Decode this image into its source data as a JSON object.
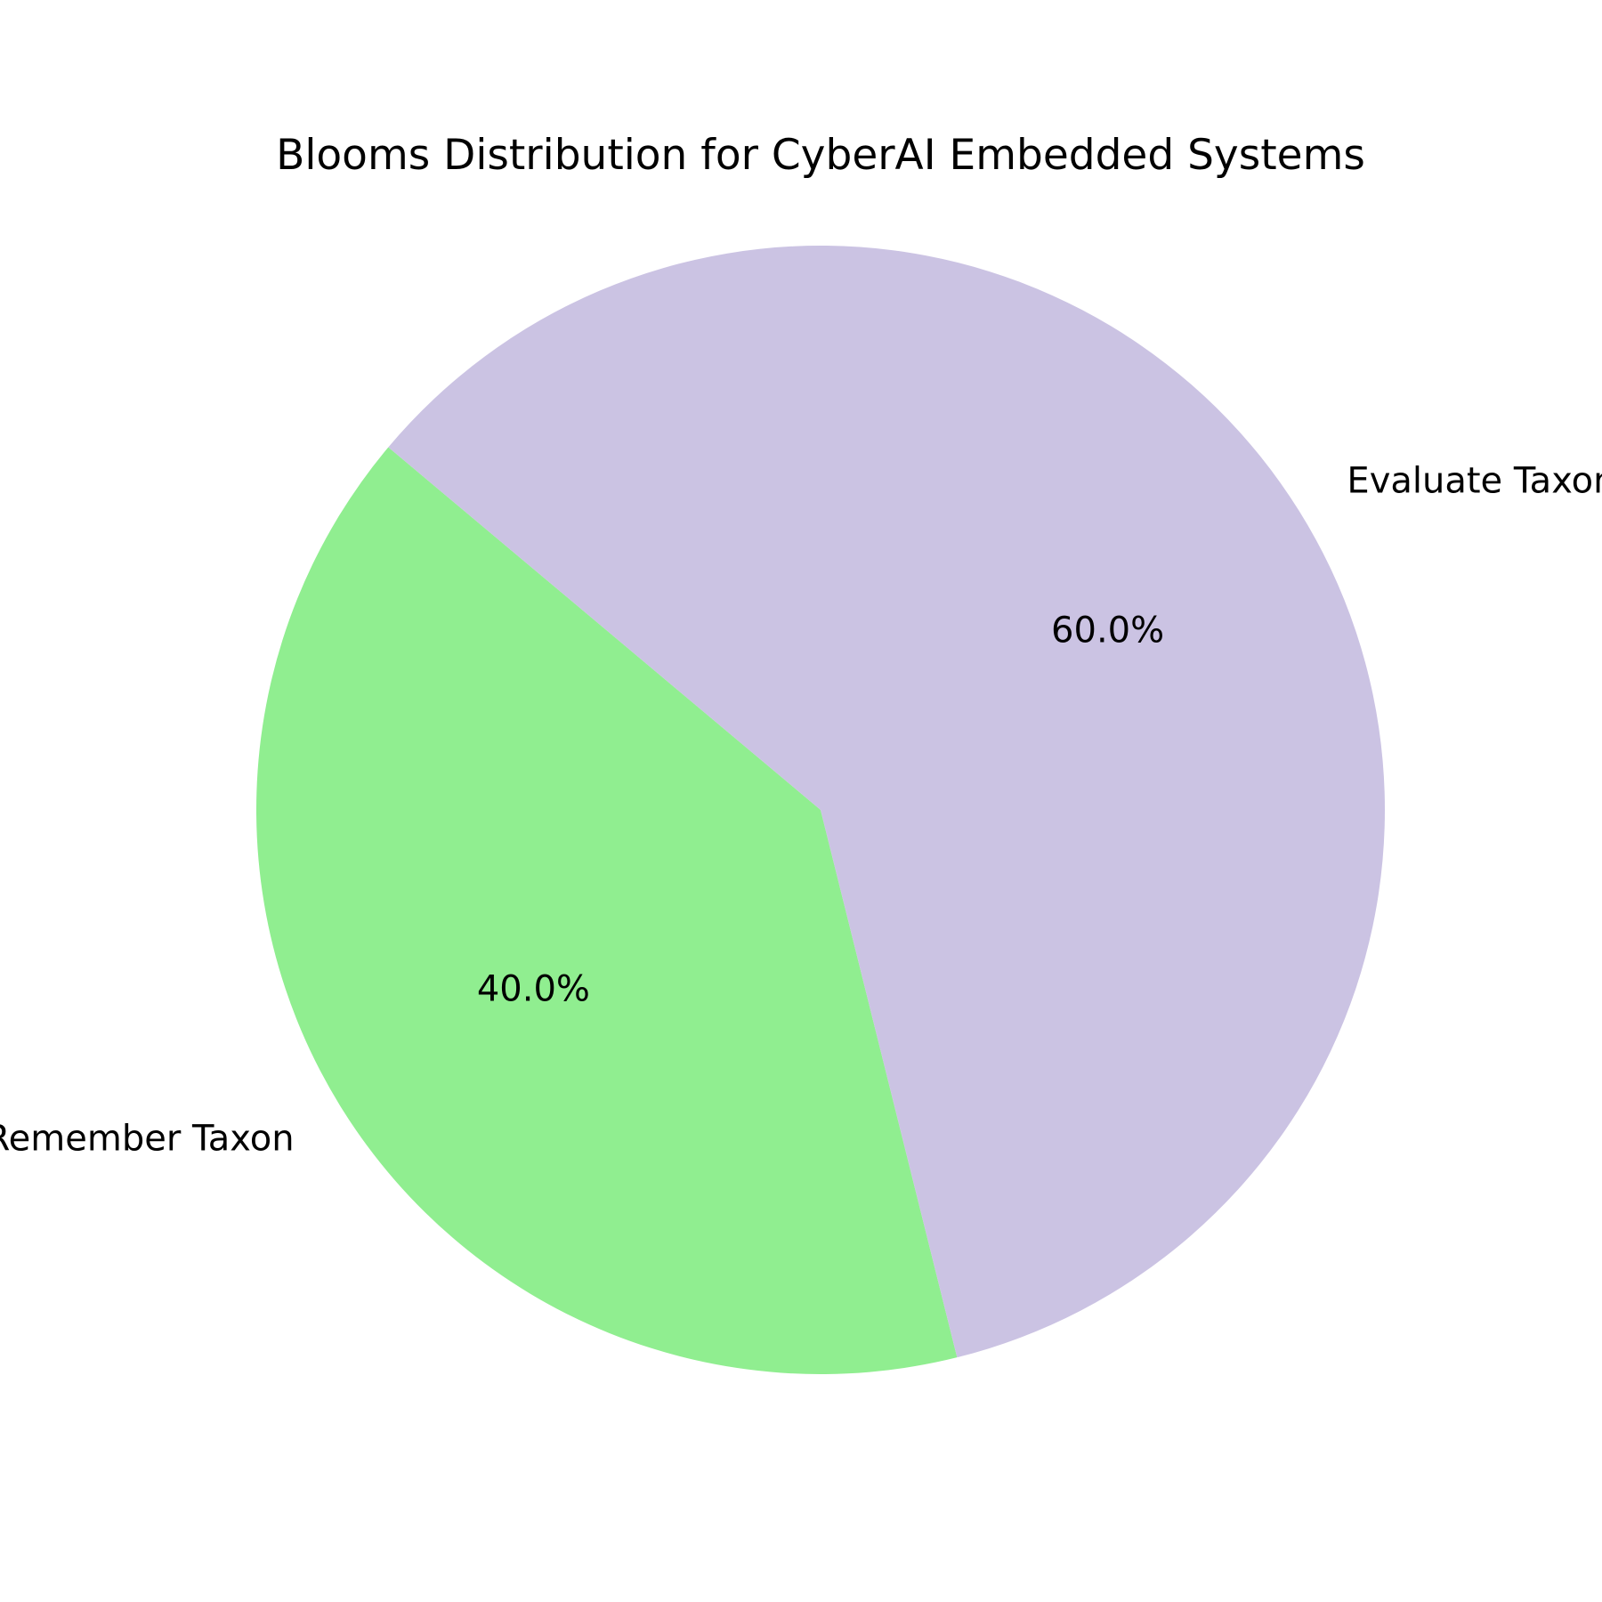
{
  "chart_data": {
    "type": "pie",
    "title": "Blooms Distribution for CyberAI Embedded Systems",
    "slices": [
      {
        "label": "Remember Taxon",
        "value": 40.0,
        "pct_label": "40.0%",
        "color": "#90ee90"
      },
      {
        "label": "Evaluate Taxon",
        "value": 60.0,
        "pct_label": "60.0%",
        "color": "#cbc3e3"
      }
    ],
    "start_angle_deg": 140,
    "direction": "counterclockwise",
    "legend": "none"
  }
}
